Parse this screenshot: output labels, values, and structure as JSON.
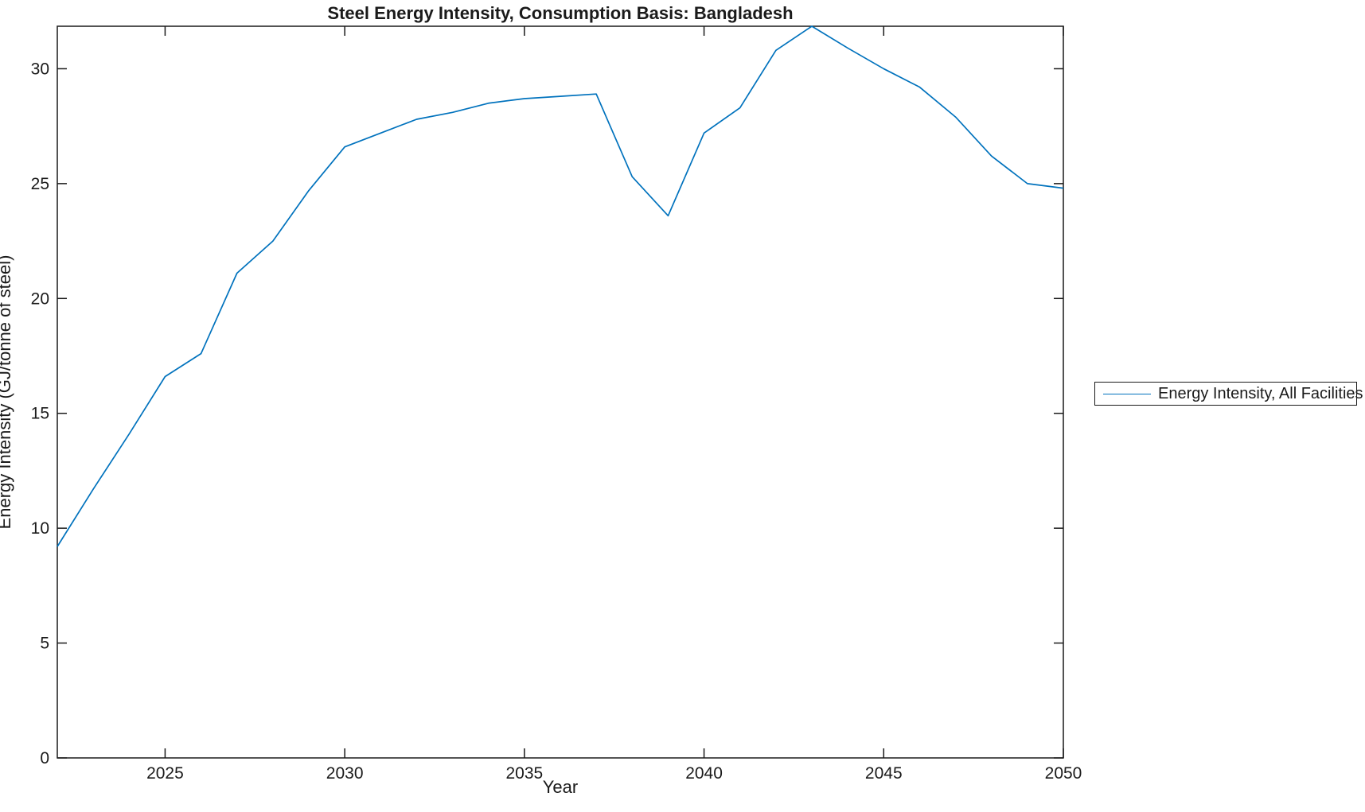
{
  "chart_data": {
    "type": "line",
    "title": "Steel Energy Intensity, Consumption Basis: Bangladesh",
    "xlabel": "Year",
    "ylabel": "Energy Intensity (GJ/tonne of steel)",
    "xlim": [
      2022,
      2050
    ],
    "ylim": [
      0,
      31.85
    ],
    "xticks": [
      2025,
      2030,
      2035,
      2040,
      2045,
      2050
    ],
    "yticks": [
      0,
      5,
      10,
      15,
      20,
      25,
      30
    ],
    "grid": false,
    "box": true,
    "legend_position": "eastoutside",
    "legend_entries": [
      "Energy Intensity, All Facilities"
    ],
    "series": [
      {
        "name": "Energy Intensity, All Facilities",
        "color": "#0072BD",
        "x": [
          2022,
          2023,
          2024,
          2025,
          2026,
          2027,
          2028,
          2029,
          2030,
          2031,
          2032,
          2033,
          2034,
          2035,
          2036,
          2037,
          2038,
          2039,
          2040,
          2041,
          2042,
          2043,
          2044,
          2045,
          2046,
          2047,
          2048,
          2049,
          2050
        ],
        "y": [
          9.2,
          11.7,
          14.1,
          16.6,
          17.6,
          21.1,
          22.5,
          24.7,
          26.6,
          27.2,
          27.8,
          28.1,
          28.5,
          28.7,
          28.8,
          28.9,
          25.3,
          23.6,
          27.2,
          28.3,
          30.8,
          31.85,
          30.9,
          30.0,
          29.2,
          27.9,
          26.2,
          25.0,
          24.8
        ]
      }
    ],
    "colors": {
      "line": "#0072BD",
      "axis": "#1a1a1a",
      "background": "#ffffff"
    }
  }
}
